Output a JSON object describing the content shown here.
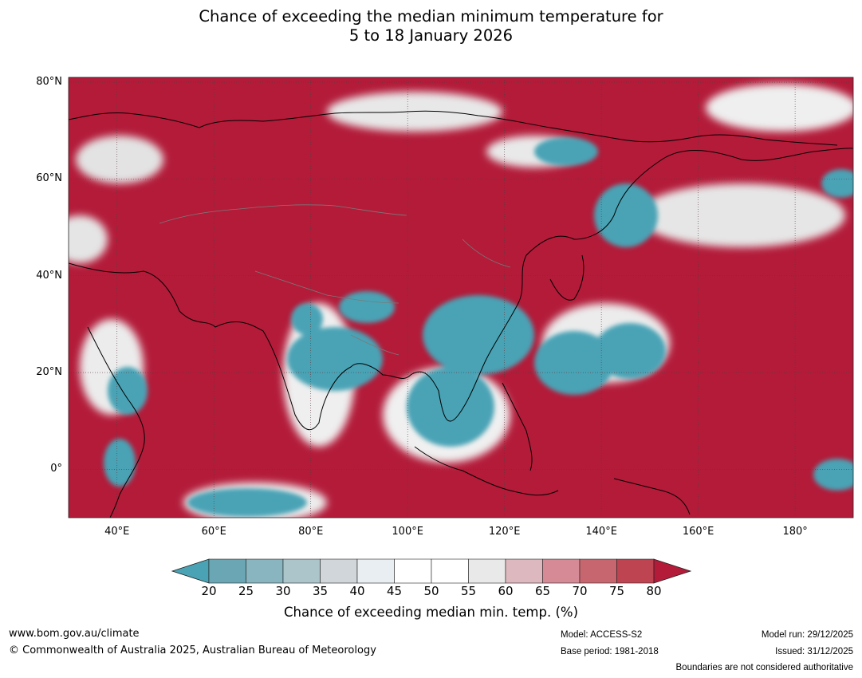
{
  "title": {
    "line1": "Chance of exceeding the median minimum temperature for",
    "line2": "5 to 18 January 2026"
  },
  "map": {
    "lon_range": [
      30,
      192
    ],
    "lat_range": [
      -10,
      81
    ],
    "lat_ticks": [
      {
        "value": 80,
        "label": "80°N"
      },
      {
        "value": 60,
        "label": "60°N"
      },
      {
        "value": 40,
        "label": "40°N"
      },
      {
        "value": 20,
        "label": "20°N"
      },
      {
        "value": 0,
        "label": "0°"
      }
    ],
    "lon_ticks": [
      {
        "value": 40,
        "label": "40°E"
      },
      {
        "value": 60,
        "label": "60°E"
      },
      {
        "value": 80,
        "label": "80°E"
      },
      {
        "value": 100,
        "label": "100°E"
      },
      {
        "value": 120,
        "label": "120°E"
      },
      {
        "value": 140,
        "label": "140°E"
      },
      {
        "value": 160,
        "label": "160°E"
      },
      {
        "value": 180,
        "label": "180°"
      }
    ],
    "below_median_color": "#4aa3b5",
    "above_median_color": "#b31b39"
  },
  "colorbar": {
    "ticks": [
      "20",
      "25",
      "30",
      "35",
      "40",
      "45",
      "50",
      "55",
      "60",
      "65",
      "70",
      "75",
      "80"
    ],
    "colors": [
      "#6aa6b3",
      "#88b5c0",
      "#abc5cb",
      "#d0d6d9",
      "#e8eef1",
      "#ffffff",
      "#ffffff",
      "#e9e9e9",
      "#ddb8bf",
      "#d58a95",
      "#c86670",
      "#bf4452"
    ],
    "under_color": "#4aa3b5",
    "over_color": "#b31b39",
    "label": "Chance of exceeding median min. temp. (%)"
  },
  "footer": {
    "website": "www.bom.gov.au/climate",
    "copyright": "© Commonwealth of Australia 2025, Australian Bureau of Meteorology",
    "model": "Model: ACCESS-S2",
    "base_period": "Base period: 1981-2018",
    "model_run": "Model run: 29/12/2025",
    "issued": "Issued: 31/12/2025",
    "disclaimer": "Boundaries are not considered authoritative"
  }
}
